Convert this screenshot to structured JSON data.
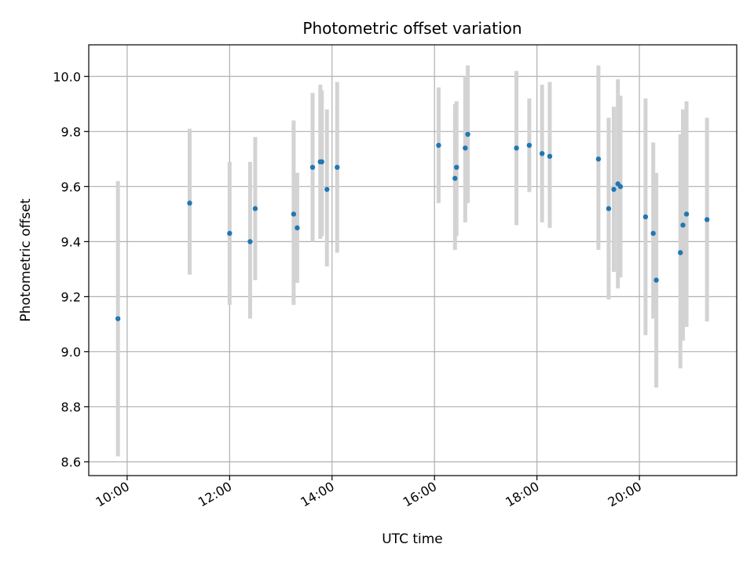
{
  "chart_data": {
    "type": "scatter",
    "title": "Photometric offset variation",
    "xlabel": "UTC time",
    "ylabel": "Photometric offset",
    "x_unit": "hours (UTC)",
    "xlim": [
      9.25,
      21.9
    ],
    "ylim": [
      8.55,
      10.115
    ],
    "xticks": [
      {
        "value": 10,
        "label": "10:00"
      },
      {
        "value": 12,
        "label": "12:00"
      },
      {
        "value": 14,
        "label": "14:00"
      },
      {
        "value": 16,
        "label": "16:00"
      },
      {
        "value": 18,
        "label": "18:00"
      },
      {
        "value": 20,
        "label": "20:00"
      }
    ],
    "yticks": [
      {
        "value": 8.6,
        "label": "8.6"
      },
      {
        "value": 8.8,
        "label": "8.8"
      },
      {
        "value": 9.0,
        "label": "9.0"
      },
      {
        "value": 9.2,
        "label": "9.2"
      },
      {
        "value": 9.4,
        "label": "9.4"
      },
      {
        "value": 9.6,
        "label": "9.6"
      },
      {
        "value": 9.8,
        "label": "9.8"
      },
      {
        "value": 10.0,
        "label": "10.0"
      }
    ],
    "grid": true,
    "marker_color": "#1f77b4",
    "errorbar_color": "#d3d3d3",
    "points": [
      {
        "x": 9.82,
        "y": 9.12,
        "err_low": 8.62,
        "err_high": 9.62
      },
      {
        "x": 11.22,
        "y": 9.54,
        "err_low": 9.28,
        "err_high": 9.81
      },
      {
        "x": 12.0,
        "y": 9.43,
        "err_low": 9.17,
        "err_high": 9.69
      },
      {
        "x": 12.4,
        "y": 9.4,
        "err_low": 9.12,
        "err_high": 9.69
      },
      {
        "x": 12.5,
        "y": 9.52,
        "err_low": 9.26,
        "err_high": 9.78
      },
      {
        "x": 13.25,
        "y": 9.5,
        "err_low": 9.17,
        "err_high": 9.84
      },
      {
        "x": 13.32,
        "y": 9.45,
        "err_low": 9.25,
        "err_high": 9.65
      },
      {
        "x": 13.62,
        "y": 9.67,
        "err_low": 9.4,
        "err_high": 9.94
      },
      {
        "x": 13.77,
        "y": 9.69,
        "err_low": 9.41,
        "err_high": 9.97
      },
      {
        "x": 13.8,
        "y": 9.69,
        "err_low": 9.42,
        "err_high": 9.95
      },
      {
        "x": 13.9,
        "y": 9.59,
        "err_low": 9.31,
        "err_high": 9.88
      },
      {
        "x": 14.1,
        "y": 9.67,
        "err_low": 9.36,
        "err_high": 9.98
      },
      {
        "x": 16.08,
        "y": 9.75,
        "err_low": 9.54,
        "err_high": 9.96
      },
      {
        "x": 16.4,
        "y": 9.63,
        "err_low": 9.37,
        "err_high": 9.9
      },
      {
        "x": 16.43,
        "y": 9.67,
        "err_low": 9.42,
        "err_high": 9.91
      },
      {
        "x": 16.6,
        "y": 9.74,
        "err_low": 9.47,
        "err_high": 10.0
      },
      {
        "x": 16.65,
        "y": 9.79,
        "err_low": 9.54,
        "err_high": 10.04
      },
      {
        "x": 17.6,
        "y": 9.74,
        "err_low": 9.46,
        "err_high": 10.02
      },
      {
        "x": 17.85,
        "y": 9.75,
        "err_low": 9.58,
        "err_high": 9.92
      },
      {
        "x": 18.1,
        "y": 9.72,
        "err_low": 9.47,
        "err_high": 9.97
      },
      {
        "x": 18.25,
        "y": 9.71,
        "err_low": 9.45,
        "err_high": 9.98
      },
      {
        "x": 19.2,
        "y": 9.7,
        "err_low": 9.37,
        "err_high": 10.04
      },
      {
        "x": 19.4,
        "y": 9.52,
        "err_low": 9.19,
        "err_high": 9.85
      },
      {
        "x": 19.5,
        "y": 9.59,
        "err_low": 9.29,
        "err_high": 9.89
      },
      {
        "x": 19.58,
        "y": 9.61,
        "err_low": 9.23,
        "err_high": 9.99
      },
      {
        "x": 19.63,
        "y": 9.6,
        "err_low": 9.27,
        "err_high": 9.93
      },
      {
        "x": 20.12,
        "y": 9.49,
        "err_low": 9.06,
        "err_high": 9.92
      },
      {
        "x": 20.27,
        "y": 9.43,
        "err_low": 9.12,
        "err_high": 9.76
      },
      {
        "x": 20.33,
        "y": 9.26,
        "err_low": 8.87,
        "err_high": 9.65
      },
      {
        "x": 20.8,
        "y": 9.36,
        "err_low": 8.94,
        "err_high": 9.79
      },
      {
        "x": 20.85,
        "y": 9.46,
        "err_low": 9.04,
        "err_high": 9.88
      },
      {
        "x": 20.92,
        "y": 9.5,
        "err_low": 9.09,
        "err_high": 9.91
      },
      {
        "x": 21.32,
        "y": 9.48,
        "err_low": 9.11,
        "err_high": 9.85
      }
    ]
  }
}
